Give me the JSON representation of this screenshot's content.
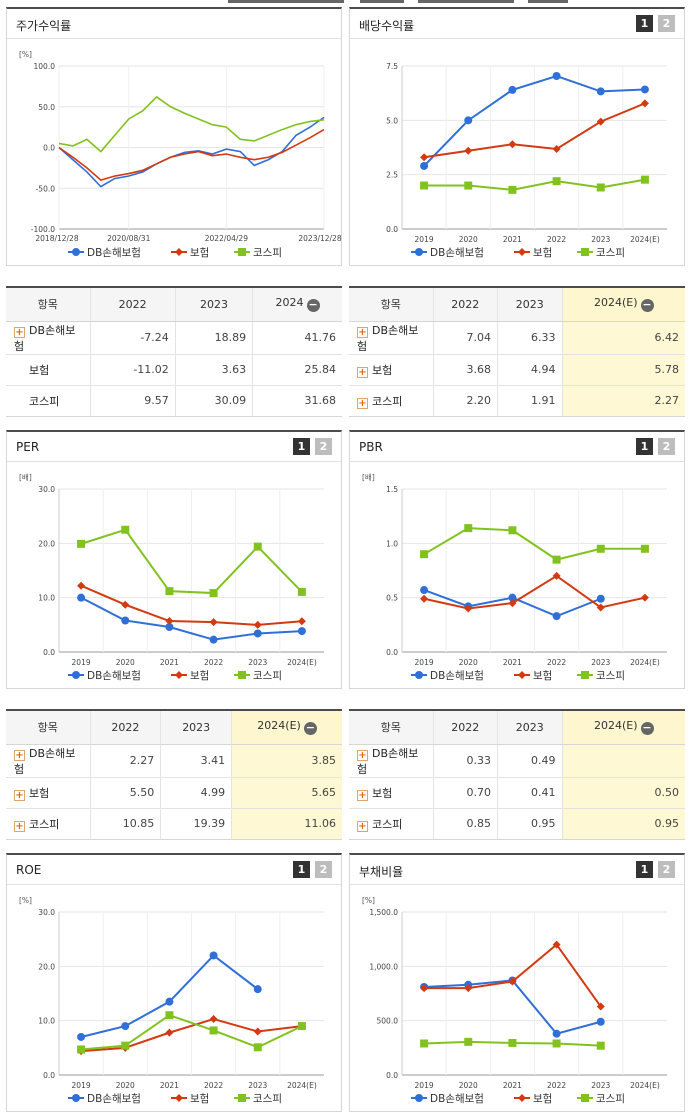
{
  "colors": {
    "db": "#2f6fd8",
    "ins": "#d33a11",
    "kospi": "#82c21f"
  },
  "legend": [
    "DB손해보험",
    "보험",
    "코스피"
  ],
  "page_buttons": [
    "1",
    "2"
  ],
  "stock": {
    "title": "주가수익률",
    "unit": "[%]",
    "chart_data": {
      "type": "line",
      "title": "주가수익률",
      "ylabel": "[%]",
      "ylim": [
        -100,
        100
      ],
      "yticks": [
        "100.0",
        "50.0",
        "0.0",
        "-50.0",
        "-100.0"
      ],
      "xticks": [
        "2018/12/28",
        "2020/08/31",
        "2022/04/29",
        "2023/12/28"
      ],
      "x": [
        "2018/12/28",
        "2019/06",
        "2019/12",
        "2020/03",
        "2020/06",
        "2020/08/31",
        "2020/12",
        "2021/03",
        "2021/06",
        "2021/09",
        "2021/12",
        "2022/03",
        "2022/04/29",
        "2022/07",
        "2022/10",
        "2023/01",
        "2023/04",
        "2023/07",
        "2023/10",
        "2023/12/28"
      ],
      "series": [
        {
          "name": "DB손해보험",
          "values": [
            0,
            -15,
            -30,
            -48,
            -38,
            -35,
            -30,
            -20,
            -12,
            -6,
            -4,
            -8,
            -2,
            -5,
            -22,
            -15,
            -5,
            15,
            25,
            37
          ]
        },
        {
          "name": "보험",
          "values": [
            0,
            -12,
            -25,
            -40,
            -35,
            -32,
            -28,
            -20,
            -12,
            -8,
            -5,
            -10,
            -8,
            -12,
            -15,
            -12,
            -6,
            3,
            12,
            22
          ]
        },
        {
          "name": "코스피",
          "values": [
            5,
            2,
            10,
            -5,
            15,
            35,
            45,
            62,
            50,
            42,
            35,
            28,
            25,
            10,
            8,
            15,
            22,
            28,
            32,
            34
          ]
        }
      ]
    },
    "table": {
      "headers": [
        "항목",
        "2022",
        "2023",
        "2024"
      ],
      "rows": [
        {
          "label": "DB손해보험",
          "plus": true,
          "values": [
            "-7.24",
            "18.89",
            "41.76"
          ]
        },
        {
          "label": "보험",
          "plus": false,
          "values": [
            "-11.02",
            "3.63",
            "25.84"
          ]
        },
        {
          "label": "코스피",
          "plus": false,
          "values": [
            "9.57",
            "30.09",
            "31.68"
          ]
        }
      ]
    }
  },
  "dividend": {
    "title": "배당수익률",
    "chart_data": {
      "type": "line",
      "title": "배당수익률",
      "categories": [
        "2019",
        "2020",
        "2021",
        "2022",
        "2023",
        "2024(E)"
      ],
      "ylim": [
        0,
        7.5
      ],
      "yticks": [
        "7.5",
        "5.0",
        "2.5",
        "0.0"
      ],
      "series": [
        {
          "name": "DB손해보험",
          "values": [
            2.9,
            5.0,
            6.4,
            7.04,
            6.33,
            6.42
          ]
        },
        {
          "name": "보험",
          "values": [
            3.3,
            3.6,
            3.9,
            3.68,
            4.94,
            5.78
          ]
        },
        {
          "name": "코스피",
          "values": [
            2.0,
            2.0,
            1.8,
            2.2,
            1.91,
            2.27
          ]
        }
      ]
    },
    "table": {
      "headers": [
        "항목",
        "2022",
        "2023",
        "2024(E)"
      ],
      "rows": [
        {
          "label": "DB손해보험",
          "plus": true,
          "values": [
            "7.04",
            "6.33",
            "6.42"
          ]
        },
        {
          "label": "보험",
          "plus": true,
          "values": [
            "3.68",
            "4.94",
            "5.78"
          ]
        },
        {
          "label": "코스피",
          "plus": true,
          "values": [
            "2.20",
            "1.91",
            "2.27"
          ]
        }
      ]
    }
  },
  "per": {
    "title": "PER",
    "unit": "[배]",
    "chart_data": {
      "type": "line",
      "title": "PER",
      "ylabel": "[배]",
      "categories": [
        "2019",
        "2020",
        "2021",
        "2022",
        "2023",
        "2024(E)"
      ],
      "ylim": [
        0,
        30
      ],
      "yticks": [
        "30.0",
        "20.0",
        "10.0",
        "0.0"
      ],
      "series": [
        {
          "name": "DB손해보험",
          "values": [
            10.0,
            5.8,
            4.6,
            2.27,
            3.41,
            3.85
          ]
        },
        {
          "name": "보험",
          "values": [
            12.2,
            8.7,
            5.7,
            5.5,
            4.99,
            5.65
          ]
        },
        {
          "name": "코스피",
          "values": [
            19.9,
            22.5,
            11.2,
            10.85,
            19.39,
            11.06
          ]
        }
      ]
    },
    "table": {
      "headers": [
        "항목",
        "2022",
        "2023",
        "2024(E)"
      ],
      "rows": [
        {
          "label": "DB손해보험",
          "plus": true,
          "values": [
            "2.27",
            "3.41",
            "3.85"
          ]
        },
        {
          "label": "보험",
          "plus": true,
          "values": [
            "5.50",
            "4.99",
            "5.65"
          ]
        },
        {
          "label": "코스피",
          "plus": true,
          "values": [
            "10.85",
            "19.39",
            "11.06"
          ]
        }
      ]
    }
  },
  "pbr": {
    "title": "PBR",
    "unit": "[배]",
    "chart_data": {
      "type": "line",
      "title": "PBR",
      "ylabel": "[배]",
      "categories": [
        "2019",
        "2020",
        "2021",
        "2022",
        "2023",
        "2024(E)"
      ],
      "ylim": [
        0,
        1.5
      ],
      "yticks": [
        "1.5",
        "1.0",
        "0.5",
        "0.0"
      ],
      "series": [
        {
          "name": "DB손해보험",
          "values": [
            0.57,
            0.42,
            0.5,
            0.33,
            0.49,
            null
          ]
        },
        {
          "name": "보험",
          "values": [
            0.49,
            0.4,
            0.45,
            0.7,
            0.41,
            0.5
          ]
        },
        {
          "name": "코스피",
          "values": [
            0.9,
            1.14,
            1.12,
            0.85,
            0.95,
            0.95
          ]
        }
      ]
    },
    "table": {
      "headers": [
        "항목",
        "2022",
        "2023",
        "2024(E)"
      ],
      "rows": [
        {
          "label": "DB손해보험",
          "plus": true,
          "values": [
            "0.33",
            "0.49",
            ""
          ]
        },
        {
          "label": "보험",
          "plus": true,
          "values": [
            "0.70",
            "0.41",
            "0.50"
          ]
        },
        {
          "label": "코스피",
          "plus": true,
          "values": [
            "0.85",
            "0.95",
            "0.95"
          ]
        }
      ]
    }
  },
  "roe": {
    "title": "ROE",
    "unit": "[%]",
    "chart_data": {
      "type": "line",
      "title": "ROE",
      "ylabel": "[%]",
      "categories": [
        "2019",
        "2020",
        "2021",
        "2022",
        "2023",
        "2024(E)"
      ],
      "ylim": [
        0,
        30
      ],
      "yticks": [
        "30.0",
        "20.0",
        "10.0",
        "0.0"
      ],
      "series": [
        {
          "name": "DB손해보험",
          "values": [
            7.0,
            9.0,
            13.5,
            22.0,
            15.8,
            null
          ]
        },
        {
          "name": "보험",
          "values": [
            4.4,
            5.0,
            7.8,
            10.3,
            8.0,
            9.0
          ]
        },
        {
          "name": "코스피",
          "values": [
            4.7,
            5.4,
            11.0,
            8.2,
            5.1,
            9.0
          ]
        }
      ]
    }
  },
  "debt": {
    "title": "부채비율",
    "unit": "[%]",
    "chart_data": {
      "type": "line",
      "title": "부채비율",
      "ylabel": "[%]",
      "categories": [
        "2019",
        "2020",
        "2021",
        "2022",
        "2023",
        "2024(E)"
      ],
      "ylim": [
        0,
        1500
      ],
      "yticks": [
        "1,500.0",
        "1,000.0",
        "500.0",
        "0.0"
      ],
      "series": [
        {
          "name": "DB손해보험",
          "values": [
            810,
            830,
            870,
            380,
            490,
            null
          ]
        },
        {
          "name": "보험",
          "values": [
            800,
            800,
            860,
            1200,
            630,
            null
          ]
        },
        {
          "name": "코스피",
          "values": [
            290,
            305,
            295,
            290,
            270,
            null
          ]
        }
      ]
    }
  }
}
